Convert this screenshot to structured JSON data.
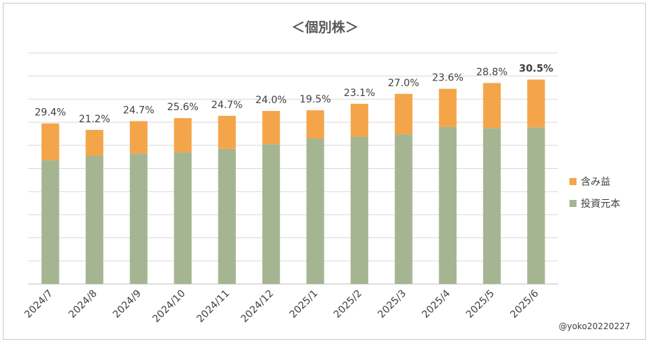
{
  "chart_data": {
    "type": "bar",
    "stacked": true,
    "title": "＜個別株＞",
    "categories": [
      "2024/7",
      "2024/8",
      "2024/9",
      "2024/10",
      "2024/11",
      "2024/12",
      "2025/1",
      "2025/2",
      "2025/3",
      "2025/4",
      "2025/5",
      "2025/6"
    ],
    "series": [
      {
        "name": "投資元本",
        "color": "#a5b592",
        "values": [
          53.5,
          55.5,
          56.5,
          57.0,
          58.5,
          60.5,
          63.0,
          63.8,
          64.8,
          68.0,
          67.5,
          67.8
        ]
      },
      {
        "name": "含み益",
        "color": "#f4a54a",
        "values": [
          16.0,
          11.2,
          14.0,
          14.8,
          14.3,
          14.4,
          12.2,
          14.2,
          17.5,
          16.5,
          19.5,
          20.7
        ]
      }
    ],
    "data_labels": [
      "29.4%",
      "21.2%",
      "24.7%",
      "25.6%",
      "24.7%",
      "24.0%",
      "19.5%",
      "23.1%",
      "27.0%",
      "23.6%",
      "28.8%",
      "30.5%"
    ],
    "bold_label_index": 11,
    "ylim": [
      0,
      100
    ],
    "ytick_step": 10,
    "grid": true,
    "legend_position": "right",
    "legend_order": [
      "含み益",
      "投資元本"
    ],
    "xlabel": "",
    "ylabel": "",
    "gridline_color": "#d9d9d9",
    "axis_color": "#bfbfbf"
  },
  "credit": "@yoko20220227"
}
